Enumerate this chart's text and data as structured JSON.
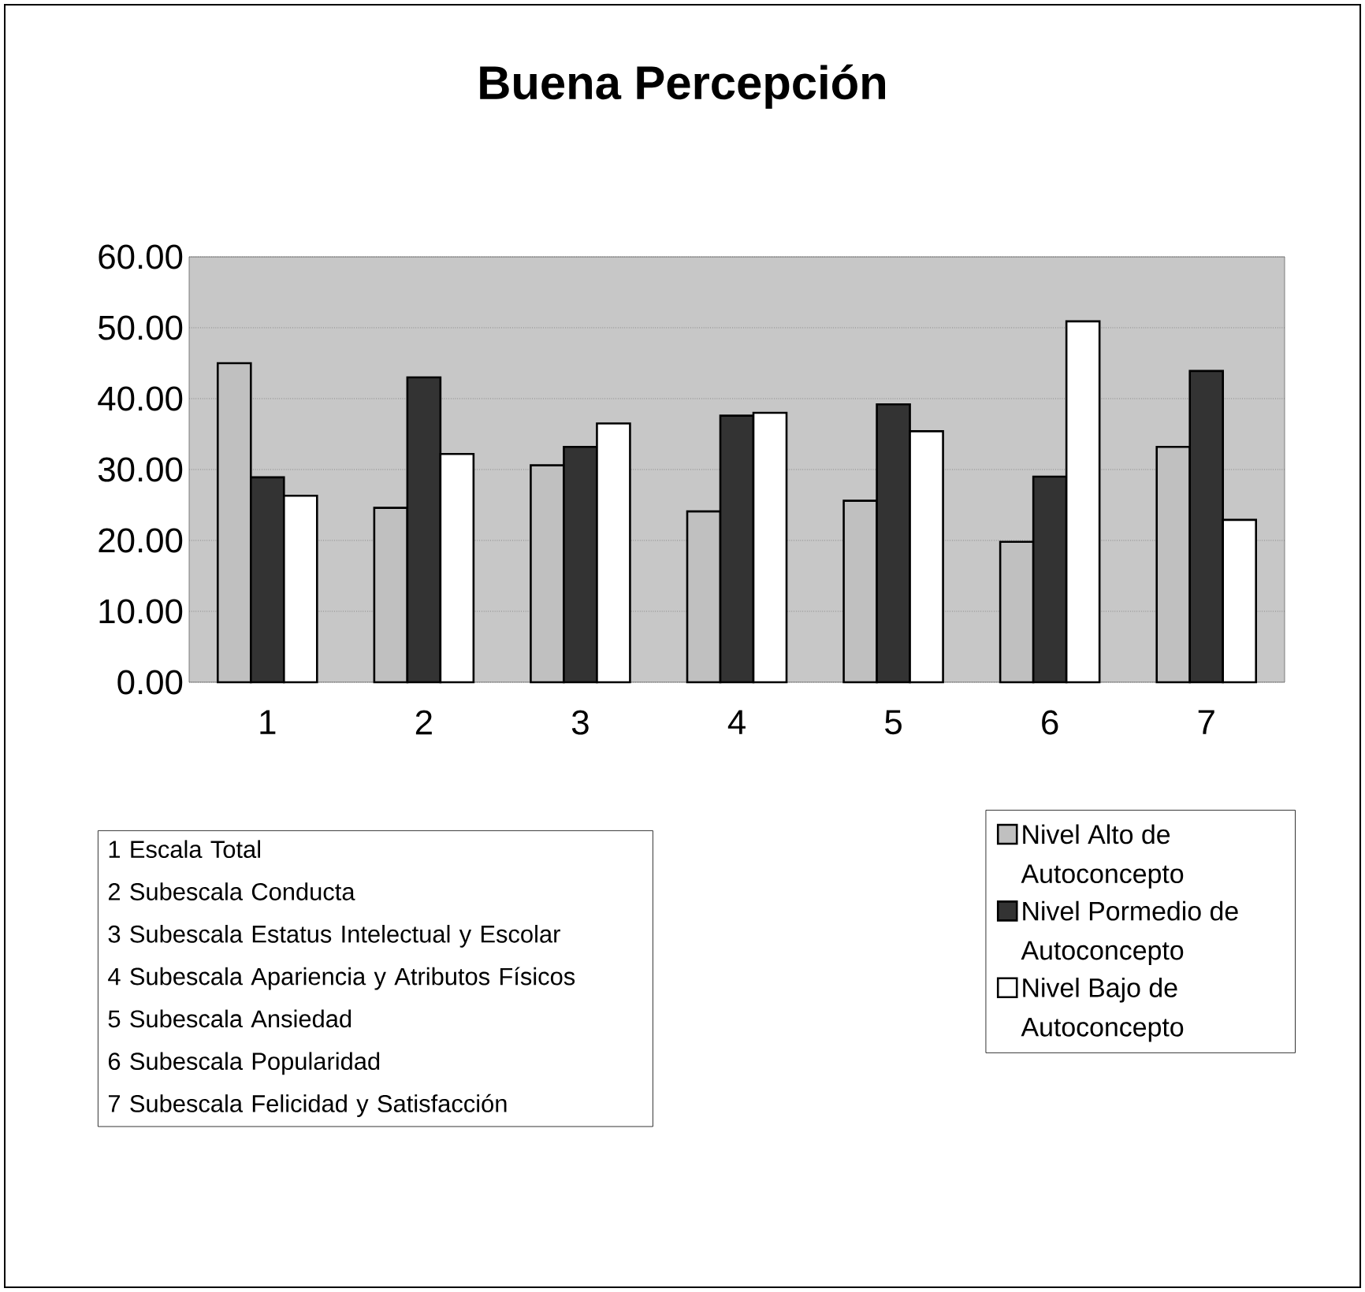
{
  "chart_data": {
    "type": "bar",
    "title": "Buena Percepción",
    "categories": [
      "1",
      "2",
      "3",
      "4",
      "5",
      "6",
      "7"
    ],
    "series": [
      {
        "name": "Nivel Alto de Autoconcepto",
        "color": "#c0c0c0",
        "values": [
          45.0,
          24.6,
          30.6,
          24.1,
          25.6,
          19.8,
          33.2
        ]
      },
      {
        "name": "Nivel Pormedio de Autoconcepto",
        "color": "#333333",
        "values": [
          28.9,
          43.0,
          33.2,
          37.6,
          39.2,
          29.0,
          43.9
        ]
      },
      {
        "name": "Nivel Bajo de Autoconcepto",
        "color": "#ffffff",
        "values": [
          26.3,
          32.2,
          36.5,
          38.0,
          35.4,
          50.9,
          22.9
        ]
      }
    ],
    "ylim": [
      0,
      60
    ],
    "yticks": [
      {
        "value": 0,
        "label": "0.00"
      },
      {
        "value": 10,
        "label": "10.00"
      },
      {
        "value": 20,
        "label": "20.00"
      },
      {
        "value": 30,
        "label": "30.00"
      },
      {
        "value": 40,
        "label": "40.00"
      },
      {
        "value": 50,
        "label": "50.00"
      },
      {
        "value": 60,
        "label": "60.00"
      }
    ],
    "grid": "y",
    "legend": "bottom right",
    "annotations": [
      "1 Escala Total",
      "2 Subescala Conducta",
      "3 Subescala Estatus Intelectual y Escolar",
      "4 Subescala Apariencia y Atributos Físicos",
      "5 Subescala Ansiedad",
      "6 Subescala Popularidad",
      "7 Subescala Felicidad y Satisfacción"
    ]
  }
}
